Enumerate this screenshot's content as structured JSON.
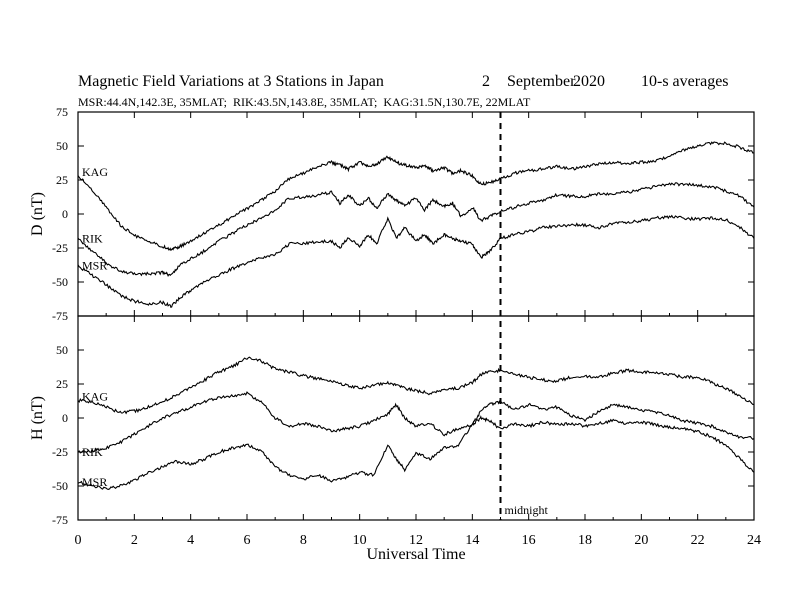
{
  "header": {
    "title": "Magnetic Field Variations at 3 Stations in Japan",
    "day": "2",
    "month": "September",
    "year": "2020",
    "averaging": "10-s averages",
    "stations_line": "MSR:44.4N,142.3E, 35MLAT;  RIK:43.5N,143.8E, 35MLAT;  KAG:31.5N,130.7E, 22MLAT"
  },
  "chart_data": {
    "type": "line",
    "xlabel": "Universal Time",
    "xlim": [
      0,
      24
    ],
    "x_ticks": [
      0,
      2,
      4,
      6,
      8,
      10,
      12,
      14,
      16,
      18,
      20,
      22,
      24
    ],
    "midnight": {
      "x": 15,
      "label": "midnight"
    },
    "panels": [
      {
        "ylabel": "D (nT)",
        "ylim": [
          -75,
          75
        ],
        "y_ticks": [
          -75,
          -50,
          -25,
          0,
          25,
          50,
          75
        ],
        "x": [
          0,
          0.5,
          1,
          1.5,
          2,
          2.5,
          3,
          3.3,
          3.6,
          4,
          4.5,
          5,
          5.5,
          6,
          6.5,
          7,
          7.5,
          8,
          8.5,
          9,
          9.3,
          9.6,
          10,
          10.3,
          10.6,
          11,
          11.3,
          11.6,
          12,
          12.3,
          12.6,
          13,
          13.3,
          13.6,
          14,
          14.3,
          14.6,
          15,
          15.5,
          16,
          16.5,
          17,
          17.5,
          18,
          18.5,
          19,
          19.5,
          20,
          20.5,
          21,
          21.5,
          22,
          22.5,
          23,
          23.5,
          24
        ],
        "series": [
          {
            "name": "KAG",
            "values": [
              28,
              18,
              5,
              -8,
              -16,
              -20,
              -24,
              -26,
              -24,
              -20,
              -14,
              -8,
              -2,
              4,
              10,
              17,
              26,
              30,
              35,
              38,
              36,
              33,
              38,
              35,
              37,
              42,
              38,
              36,
              34,
              36,
              32,
              34,
              30,
              32,
              28,
              22,
              23,
              26,
              30,
              32,
              33,
              35,
              33,
              35,
              37,
              38,
              37,
              38,
              39,
              42,
              47,
              50,
              52,
              52,
              49,
              45
            ]
          },
          {
            "name": "RIK",
            "values": [
              -18,
              -27,
              -36,
              -42,
              -44,
              -44,
              -43,
              -45,
              -38,
              -33,
              -27,
              -20,
              -14,
              -8,
              -3,
              3,
              12,
              12,
              14,
              16,
              8,
              14,
              6,
              12,
              4,
              15,
              10,
              6,
              12,
              3,
              10,
              6,
              8,
              -2,
              5,
              -5,
              -2,
              2,
              5,
              8,
              10,
              14,
              13,
              13,
              15,
              15,
              16,
              18,
              20,
              22,
              22,
              21,
              20,
              17,
              13,
              5
            ]
          },
          {
            "name": "MSR",
            "values": [
              -38,
              -45,
              -52,
              -60,
              -64,
              -66,
              -65,
              -68,
              -62,
              -56,
              -50,
              -45,
              -40,
              -36,
              -32,
              -30,
              -22,
              -22,
              -20,
              -20,
              -25,
              -17,
              -24,
              -15,
              -22,
              -3,
              -18,
              -10,
              -20,
              -15,
              -22,
              -15,
              -18,
              -20,
              -22,
              -32,
              -28,
              -18,
              -15,
              -13,
              -10,
              -9,
              -8,
              -8,
              -10,
              -7,
              -6,
              -5,
              -3,
              -2,
              -3,
              -4,
              -3,
              -4,
              -10,
              -18
            ]
          }
        ]
      },
      {
        "ylabel": "H (nT)",
        "ylim": [
          -75,
          75
        ],
        "y_ticks": [
          -75,
          -50,
          -25,
          0,
          25,
          50,
          75
        ],
        "x": [
          0,
          0.5,
          1,
          1.5,
          2,
          2.5,
          3,
          3.5,
          4,
          4.5,
          5,
          5.5,
          6,
          6.5,
          7,
          7.5,
          8,
          8.5,
          9,
          9.5,
          10,
          10.5,
          11,
          11.3,
          11.6,
          12,
          12.5,
          13,
          13.5,
          14,
          14.3,
          14.6,
          15,
          15.5,
          16,
          16.5,
          17,
          17.5,
          18,
          18.5,
          19,
          19.5,
          20,
          20.5,
          21,
          21.5,
          22,
          22.5,
          23,
          23.5,
          24
        ],
        "series": [
          {
            "name": "KAG",
            "values": [
              13,
              12,
              8,
              4,
              5,
              8,
              12,
              17,
              22,
              28,
              34,
              38,
              44,
              42,
              36,
              34,
              31,
              29,
              27,
              24,
              22,
              24,
              26,
              24,
              22,
              20,
              18,
              21,
              22,
              26,
              32,
              34,
              35,
              32,
              30,
              28,
              27,
              30,
              31,
              30,
              33,
              35,
              34,
              33,
              32,
              30,
              30,
              26,
              22,
              16,
              10
            ]
          },
          {
            "name": "RIK",
            "values": [
              -25,
              -24,
              -22,
              -18,
              -12,
              -6,
              0,
              4,
              8,
              12,
              15,
              16,
              18,
              12,
              0,
              -6,
              -4,
              -6,
              -10,
              -8,
              -6,
              -2,
              3,
              10,
              0,
              -6,
              -4,
              -12,
              -8,
              -5,
              5,
              10,
              12,
              6,
              10,
              6,
              8,
              2,
              -2,
              5,
              10,
              8,
              6,
              4,
              2,
              -2,
              -4,
              -6,
              -10,
              -14,
              -15
            ]
          },
          {
            "name": "MSR",
            "values": [
              -47,
              -50,
              -52,
              -50,
              -46,
              -40,
              -36,
              -32,
              -34,
              -30,
              -25,
              -22,
              -20,
              -24,
              -36,
              -42,
              -45,
              -42,
              -46,
              -44,
              -40,
              -42,
              -20,
              -30,
              -38,
              -26,
              -30,
              -22,
              -20,
              -5,
              0,
              -2,
              -8,
              -4,
              -6,
              -3,
              -5,
              -4,
              -6,
              -4,
              -2,
              -4,
              -3,
              -5,
              -7,
              -8,
              -10,
              -14,
              -20,
              -30,
              -40
            ]
          }
        ]
      }
    ]
  }
}
